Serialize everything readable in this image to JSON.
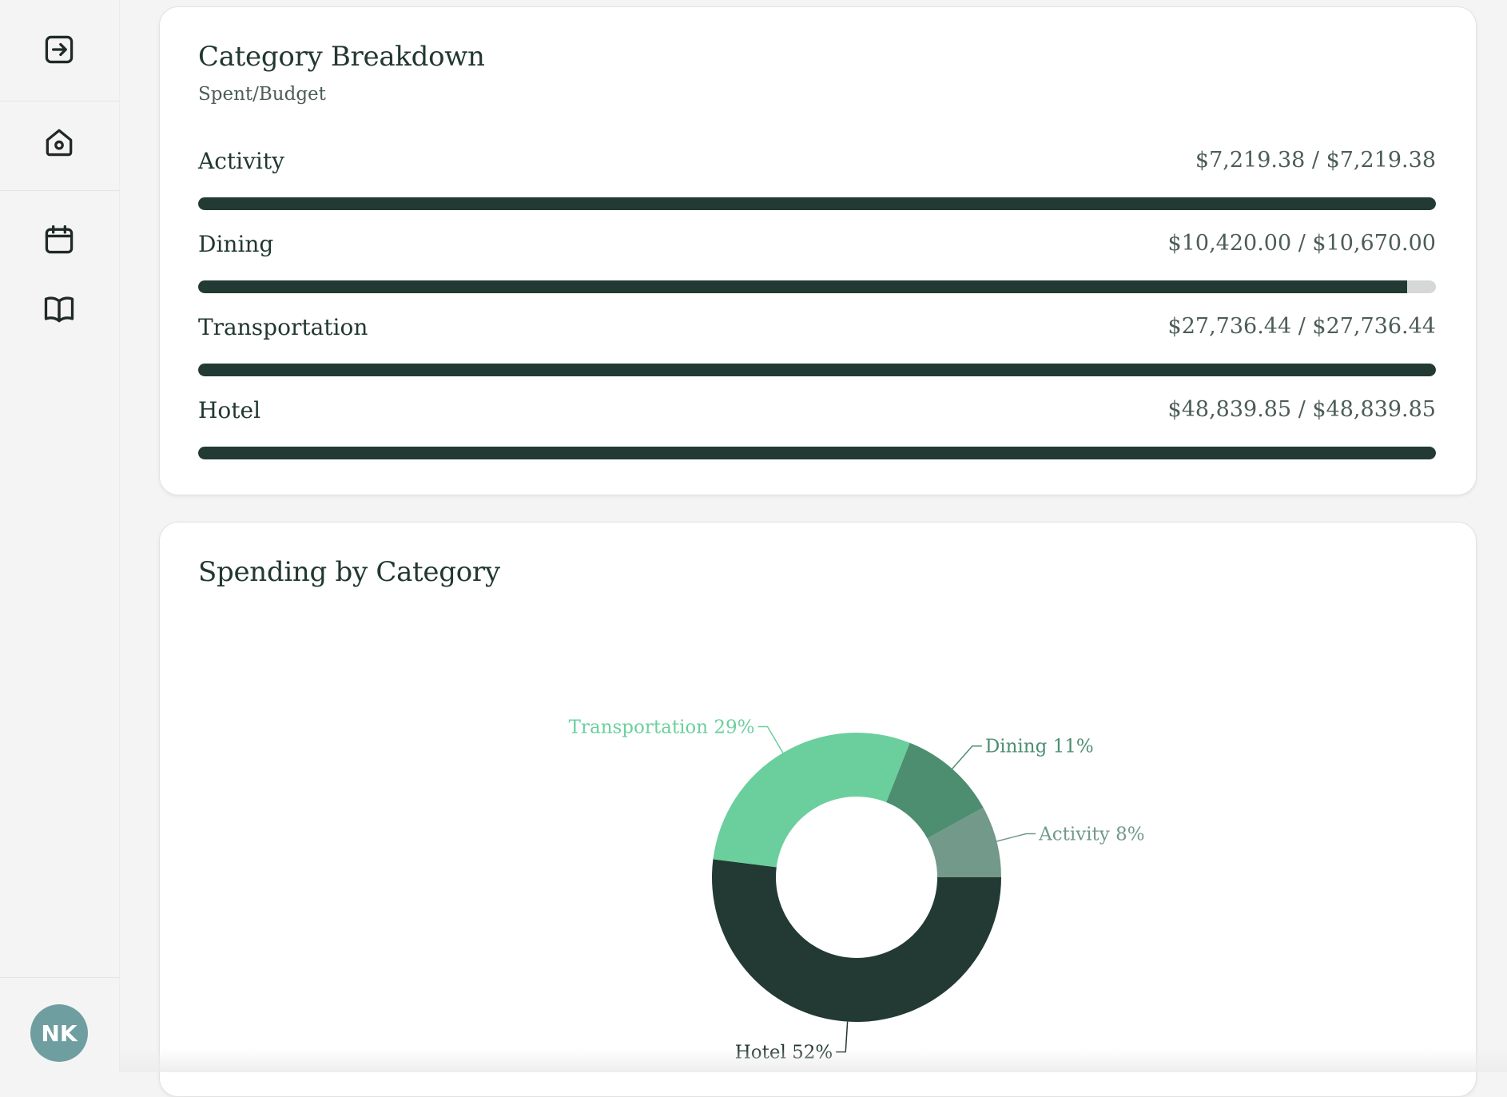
{
  "sidebar": {
    "items": [
      {
        "name": "exit-icon"
      },
      {
        "name": "home-icon"
      },
      {
        "name": "calendar-icon"
      },
      {
        "name": "book-icon"
      }
    ],
    "avatar_initials": "NK"
  },
  "breakdown": {
    "title": "Category Breakdown",
    "subtitle": "Spent/Budget",
    "categories": [
      {
        "label": "Activity",
        "amount": "$7,219.38 / $7,219.38",
        "spent": 7219.38,
        "budget": 7219.38
      },
      {
        "label": "Dining",
        "amount": "$10,420.00 / $10,670.00",
        "spent": 10420.0,
        "budget": 10670.0
      },
      {
        "label": "Transportation",
        "amount": "$27,736.44 / $27,736.44",
        "spent": 27736.44,
        "budget": 27736.44
      },
      {
        "label": "Hotel",
        "amount": "$48,839.85 / $48,839.85",
        "spent": 48839.85,
        "budget": 48839.85
      }
    ]
  },
  "spending": {
    "title": "Spending by Category"
  },
  "chart_data": {
    "type": "pie",
    "donut": true,
    "title": "Spending by Category",
    "slices": [
      {
        "label": "Hotel 52%",
        "name": "Hotel",
        "value": 52,
        "color": "#223a33"
      },
      {
        "label": "Transportation 29%",
        "name": "Transportation",
        "value": 29,
        "color": "#6bcf9d"
      },
      {
        "label": "Dining 11%",
        "name": "Dining",
        "value": 11,
        "color": "#4d8e71"
      },
      {
        "label": "Activity 8%",
        "name": "Activity",
        "value": 8,
        "color": "#72998a"
      }
    ]
  },
  "colors": {
    "bar_fill": "#223a33",
    "bar_track": "#d5d8d6",
    "avatar_bg": "#6f9ea0"
  }
}
